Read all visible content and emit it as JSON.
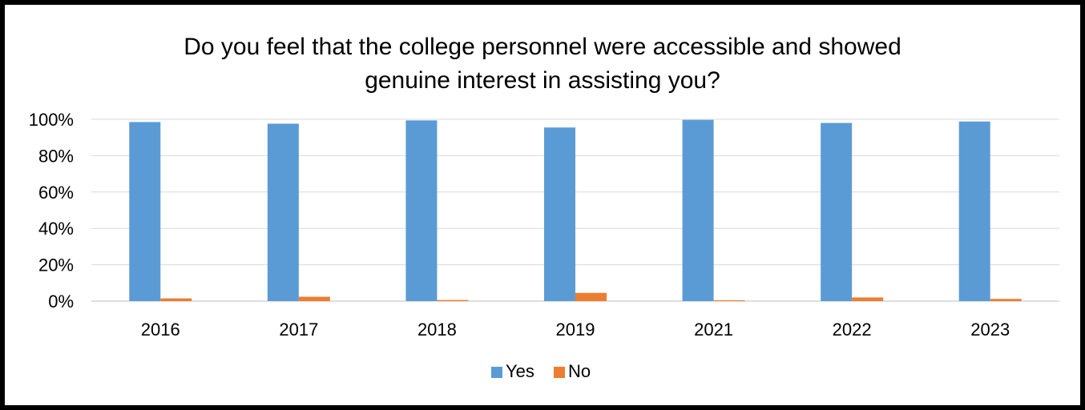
{
  "chart_data": {
    "type": "bar",
    "title_lines": [
      "Do you feel that the college personnel were accessible and showed",
      "genuine interest in assisting you?"
    ],
    "categories": [
      "2016",
      "2017",
      "2018",
      "2019",
      "2021",
      "2022",
      "2023"
    ],
    "series": [
      {
        "name": "Yes",
        "color": "#5B9BD5",
        "values": [
          98.5,
          97.6,
          99.4,
          95.5,
          99.7,
          98.0,
          98.8
        ]
      },
      {
        "name": "No",
        "color": "#ED7D31",
        "values": [
          1.5,
          2.4,
          0.6,
          4.5,
          0.3,
          2.0,
          1.2
        ]
      }
    ],
    "ylim": [
      0,
      100
    ],
    "yticks": [
      "0%",
      "20%",
      "40%",
      "60%",
      "80%",
      "100%"
    ],
    "grid": true,
    "legend_position": "bottom"
  }
}
